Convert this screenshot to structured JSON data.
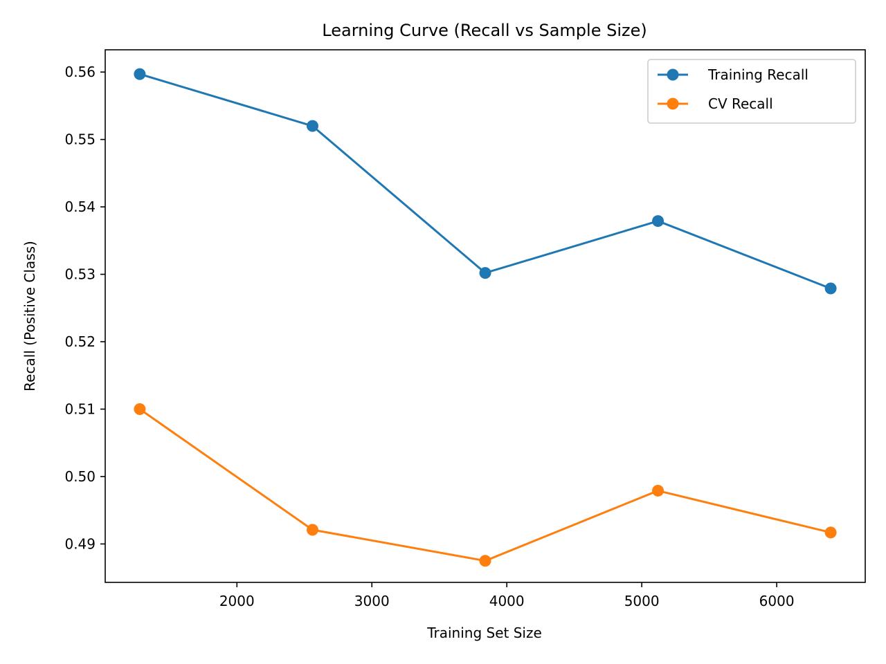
{
  "chart_data": {
    "type": "line",
    "title": "Learning Curve (Recall vs Sample Size)",
    "xlabel": "Training Set Size",
    "ylabel": "Recall (Positive Class)",
    "x": [
      1280,
      2560,
      3840,
      5120,
      6400
    ],
    "xlim": [
      1024,
      6656
    ],
    "ylim": [
      0.4843,
      0.5633
    ],
    "xticks": [
      2000,
      3000,
      4000,
      5000,
      6000
    ],
    "xtick_labels": [
      "2000",
      "3000",
      "4000",
      "5000",
      "6000"
    ],
    "yticks": [
      0.49,
      0.5,
      0.51,
      0.52,
      0.53,
      0.54,
      0.55,
      0.56
    ],
    "ytick_labels": [
      "0.49",
      "0.50",
      "0.51",
      "0.52",
      "0.53",
      "0.54",
      "0.55",
      "0.56"
    ],
    "grid": false,
    "legend_position": "top-right",
    "series": [
      {
        "name": "Training Recall",
        "color": "#1f77b4",
        "marker": "circle",
        "values": [
          0.5597,
          0.552,
          0.5302,
          0.5379,
          0.5279
        ]
      },
      {
        "name": "CV Recall",
        "color": "#ff7f0e",
        "marker": "circle",
        "values": [
          0.51,
          0.4921,
          0.4875,
          0.4979,
          0.4917
        ]
      }
    ]
  }
}
